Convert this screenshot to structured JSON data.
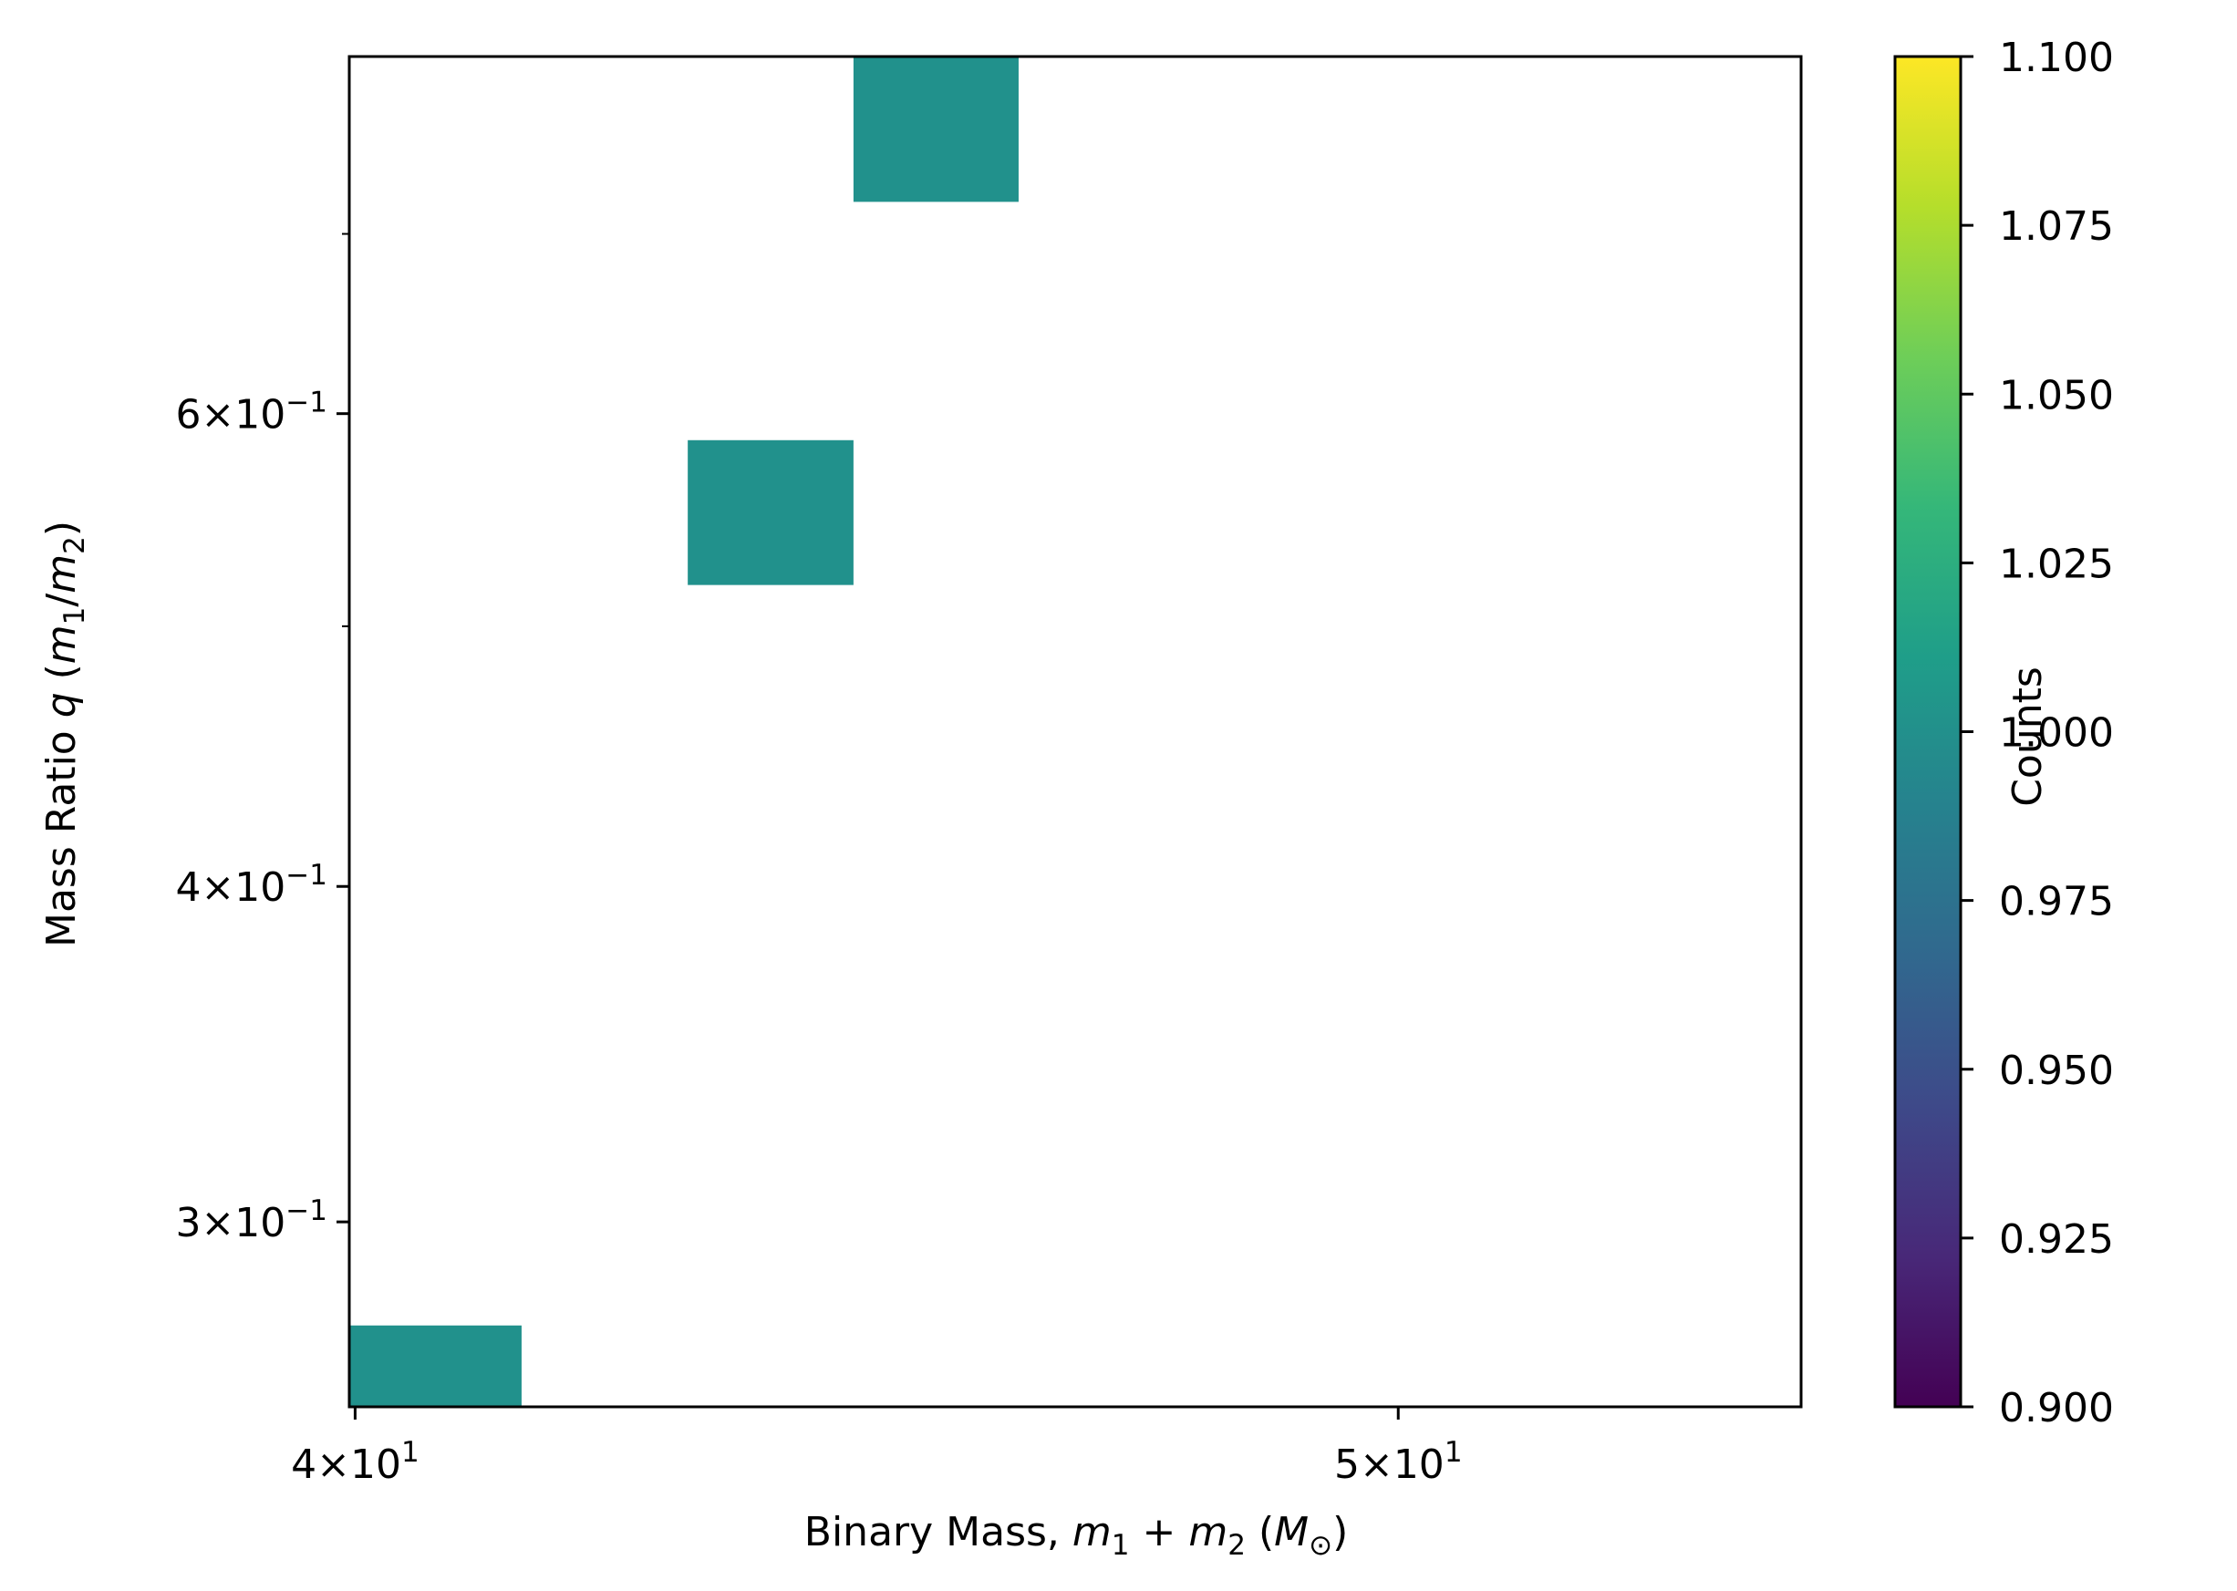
{
  "chart_data": {
    "type": "heatmap",
    "x_scale": "log",
    "y_scale": "log",
    "xlim": [
      39.95,
      54.5
    ],
    "ylim": [
      0.256,
      0.815
    ],
    "xlabel": {
      "prefix": "Binary Mass, ",
      "math": [
        "m",
        "1",
        " + ",
        "m",
        "2",
        " (",
        "M",
        "⊙",
        ")"
      ]
    },
    "ylabel": {
      "prefix": "Mass Ratio ",
      "math": [
        "q",
        " (",
        "m",
        "1",
        "/",
        "m",
        "2",
        ")"
      ]
    },
    "x_ticks": [
      {
        "value": 40,
        "mantissa": "4",
        "exp": "1"
      },
      {
        "value": 50,
        "mantissa": "5",
        "exp": "1"
      }
    ],
    "y_ticks": [
      {
        "value": 0.6,
        "mantissa": "6",
        "exp": "−1"
      },
      {
        "value": 0.4,
        "mantissa": "4",
        "exp": "−1"
      },
      {
        "value": 0.3,
        "mantissa": "3",
        "exp": "−1"
      }
    ],
    "y_minor_ticks": [
      0.5,
      0.7
    ],
    "cells": [
      {
        "x0": 39.95,
        "x1": 41.45,
        "y0": 0.256,
        "y1": 0.2745,
        "count": 1
      },
      {
        "x0": 42.95,
        "x1": 44.5,
        "y0": 0.518,
        "y1": 0.5865,
        "count": 1
      },
      {
        "x0": 44.5,
        "x1": 46.1,
        "y0": 0.7195,
        "y1": 0.815,
        "count": 1
      }
    ],
    "colorbar": {
      "label": "Counts",
      "min": 0.9,
      "max": 1.1,
      "ticks": [
        "0.900",
        "0.925",
        "0.950",
        "0.975",
        "1.000",
        "1.025",
        "1.050",
        "1.075",
        "1.100"
      ],
      "colormap": "viridis",
      "stops": [
        "#440154",
        "#482878",
        "#3e4989",
        "#31688e",
        "#26828e",
        "#1f9e89",
        "#35b779",
        "#6ece58",
        "#b5de2b",
        "#fde725"
      ]
    },
    "cell_color": "#21918c"
  }
}
